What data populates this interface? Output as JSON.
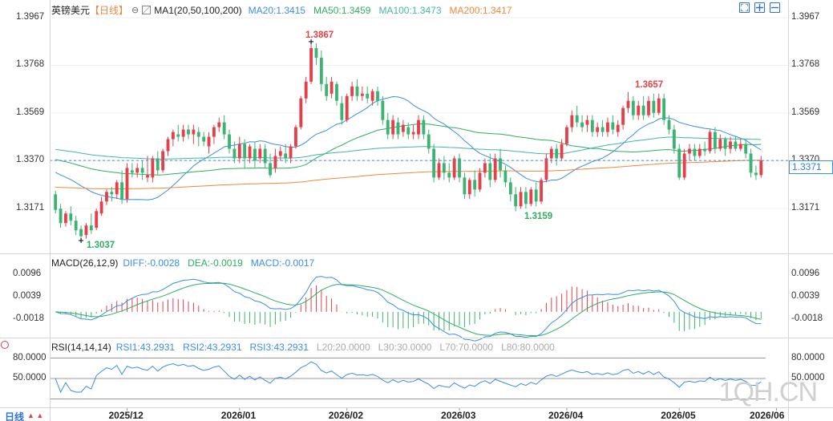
{
  "header": {
    "symbol": "英镑美元",
    "period": "【日线】",
    "gear_symbol": "⊖",
    "ma_label": "MA1(20,50,100,200)",
    "ma20": "MA20:1.3415",
    "ma50": "MA50:1.3459",
    "ma100": "MA100:1.3473",
    "ma200": "MA200:1.3417"
  },
  "price_axis": {
    "ticks": [
      "1.3967",
      "1.3768",
      "1.3569",
      "1.3370",
      "1.3171"
    ],
    "current_price": "1.3371"
  },
  "annotations": {
    "high": "1.3867",
    "high2": "1.3657",
    "low": "1.3037",
    "low2": "1.3159"
  },
  "macd": {
    "label": "MACD(26,12,9)",
    "diff": "DIFF:-0.0028",
    "dea": "DEA:-0.0019",
    "macd": "MACD:-0.0017",
    "ticks": [
      "0.0096",
      "0.0039",
      "-0.0018"
    ]
  },
  "rsi": {
    "label": "RSI(14,14,14)",
    "rsi1": "RSI1:43.2931",
    "rsi2": "RSI2:43.2931",
    "rsi3": "RSI3:43.2931",
    "l20": "L20:20.0000",
    "l30": "L30:30.0000",
    "l70": "L70:70.0000",
    "l80": "L80:80.0000",
    "ticks": [
      "80.0000",
      "50.0000"
    ]
  },
  "x_axis": {
    "period_label": "日线",
    "months": [
      "2025/12",
      "2026/01",
      "2026/02",
      "2026/03",
      "2026/04",
      "2026/05",
      "2026/06"
    ]
  },
  "watermark": "1QH.CN",
  "colors": {
    "up": "#e5404a",
    "down": "#3cb371",
    "ma20": "#3a8ee6",
    "ma50": "#2fae60",
    "ma100": "#43b6a6",
    "ma200": "#f0883e",
    "accent": "#2f6fd6",
    "high_label": "#e5404a",
    "low_label": "#2fae60"
  },
  "chart_data": {
    "type": "candlestick",
    "title": "英镑美元 【日线】",
    "ylim": [
      1.3037,
      1.3967
    ],
    "candles": [
      {
        "o": 1.323,
        "h": 1.3245,
        "c": 1.3165,
        "l": 1.315
      },
      {
        "o": 1.317,
        "h": 1.319,
        "c": 1.311,
        "l": 1.309
      },
      {
        "o": 1.311,
        "h": 1.316,
        "c": 1.315,
        "l": 1.3095
      },
      {
        "o": 1.315,
        "h": 1.318,
        "c": 1.312,
        "l": 1.31
      },
      {
        "o": 1.312,
        "h": 1.314,
        "c": 1.308,
        "l": 1.306
      },
      {
        "o": 1.3085,
        "h": 1.31,
        "c": 1.3055,
        "l": 1.3037
      },
      {
        "o": 1.306,
        "h": 1.311,
        "c": 1.31,
        "l": 1.3045
      },
      {
        "o": 1.31,
        "h": 1.315,
        "c": 1.308,
        "l": 1.3065
      },
      {
        "o": 1.309,
        "h": 1.317,
        "c": 1.316,
        "l": 1.308
      },
      {
        "o": 1.315,
        "h": 1.322,
        "c": 1.32,
        "l": 1.314
      },
      {
        "o": 1.32,
        "h": 1.325,
        "c": 1.324,
        "l": 1.3185
      },
      {
        "o": 1.324,
        "h": 1.326,
        "c": 1.323,
        "l": 1.32
      },
      {
        "o": 1.323,
        "h": 1.329,
        "c": 1.328,
        "l": 1.321
      },
      {
        "o": 1.328,
        "h": 1.333,
        "c": 1.321,
        "l": 1.319
      },
      {
        "o": 1.321,
        "h": 1.336,
        "c": 1.334,
        "l": 1.3195
      },
      {
        "o": 1.333,
        "h": 1.336,
        "c": 1.332,
        "l": 1.33
      },
      {
        "o": 1.332,
        "h": 1.336,
        "c": 1.334,
        "l": 1.33
      },
      {
        "o": 1.334,
        "h": 1.337,
        "c": 1.332,
        "l": 1.329
      },
      {
        "o": 1.33,
        "h": 1.339,
        "c": 1.331,
        "l": 1.328
      },
      {
        "o": 1.33,
        "h": 1.339,
        "c": 1.338,
        "l": 1.328
      },
      {
        "o": 1.338,
        "h": 1.341,
        "c": 1.333,
        "l": 1.331
      },
      {
        "o": 1.333,
        "h": 1.342,
        "c": 1.341,
        "l": 1.332
      },
      {
        "o": 1.341,
        "h": 1.347,
        "c": 1.346,
        "l": 1.339
      },
      {
        "o": 1.346,
        "h": 1.35,
        "c": 1.349,
        "l": 1.343
      },
      {
        "o": 1.348,
        "h": 1.352,
        "c": 1.347,
        "l": 1.345
      },
      {
        "o": 1.347,
        "h": 1.352,
        "c": 1.35,
        "l": 1.345
      },
      {
        "o": 1.35,
        "h": 1.352,
        "c": 1.348,
        "l": 1.346
      },
      {
        "o": 1.348,
        "h": 1.352,
        "c": 1.35,
        "l": 1.344
      },
      {
        "o": 1.349,
        "h": 1.351,
        "c": 1.347,
        "l": 1.343
      },
      {
        "o": 1.347,
        "h": 1.349,
        "c": 1.345,
        "l": 1.343
      },
      {
        "o": 1.343,
        "h": 1.349,
        "c": 1.347,
        "l": 1.34
      },
      {
        "o": 1.347,
        "h": 1.352,
        "c": 1.351,
        "l": 1.344
      },
      {
        "o": 1.351,
        "h": 1.355,
        "c": 1.353,
        "l": 1.349
      },
      {
        "o": 1.353,
        "h": 1.356,
        "c": 1.348,
        "l": 1.346
      },
      {
        "o": 1.348,
        "h": 1.35,
        "c": 1.342,
        "l": 1.34
      },
      {
        "o": 1.342,
        "h": 1.345,
        "c": 1.338,
        "l": 1.336
      },
      {
        "o": 1.338,
        "h": 1.347,
        "c": 1.344,
        "l": 1.336
      },
      {
        "o": 1.344,
        "h": 1.346,
        "c": 1.338,
        "l": 1.334
      },
      {
        "o": 1.338,
        "h": 1.344,
        "c": 1.343,
        "l": 1.336
      },
      {
        "o": 1.342,
        "h": 1.345,
        "c": 1.337,
        "l": 1.334
      },
      {
        "o": 1.338,
        "h": 1.344,
        "c": 1.342,
        "l": 1.336
      },
      {
        "o": 1.342,
        "h": 1.344,
        "c": 1.336,
        "l": 1.334
      },
      {
        "o": 1.336,
        "h": 1.34,
        "c": 1.331,
        "l": 1.33
      },
      {
        "o": 1.334,
        "h": 1.342,
        "c": 1.339,
        "l": 1.332
      },
      {
        "o": 1.339,
        "h": 1.343,
        "c": 1.341,
        "l": 1.337
      },
      {
        "o": 1.34,
        "h": 1.344,
        "c": 1.338,
        "l": 1.336
      },
      {
        "o": 1.338,
        "h": 1.344,
        "c": 1.343,
        "l": 1.336
      },
      {
        "o": 1.343,
        "h": 1.352,
        "c": 1.351,
        "l": 1.342
      },
      {
        "o": 1.351,
        "h": 1.364,
        "c": 1.363,
        "l": 1.35
      },
      {
        "o": 1.363,
        "h": 1.372,
        "c": 1.37,
        "l": 1.361
      },
      {
        "o": 1.37,
        "h": 1.3867,
        "c": 1.384,
        "l": 1.369
      },
      {
        "o": 1.384,
        "h": 1.386,
        "c": 1.38,
        "l": 1.377
      },
      {
        "o": 1.38,
        "h": 1.383,
        "c": 1.369,
        "l": 1.366
      },
      {
        "o": 1.369,
        "h": 1.372,
        "c": 1.364,
        "l": 1.362
      },
      {
        "o": 1.365,
        "h": 1.372,
        "c": 1.37,
        "l": 1.363
      },
      {
        "o": 1.369,
        "h": 1.37,
        "c": 1.362,
        "l": 1.36
      },
      {
        "o": 1.361,
        "h": 1.364,
        "c": 1.354,
        "l": 1.352
      },
      {
        "o": 1.354,
        "h": 1.365,
        "c": 1.364,
        "l": 1.353
      },
      {
        "o": 1.364,
        "h": 1.37,
        "c": 1.368,
        "l": 1.362
      },
      {
        "o": 1.368,
        "h": 1.371,
        "c": 1.364,
        "l": 1.362
      },
      {
        "o": 1.364,
        "h": 1.368,
        "c": 1.365,
        "l": 1.362
      },
      {
        "o": 1.365,
        "h": 1.368,
        "c": 1.363,
        "l": 1.361
      },
      {
        "o": 1.362,
        "h": 1.367,
        "c": 1.366,
        "l": 1.36
      },
      {
        "o": 1.366,
        "h": 1.368,
        "c": 1.362,
        "l": 1.36
      },
      {
        "o": 1.362,
        "h": 1.364,
        "c": 1.354,
        "l": 1.352
      },
      {
        "o": 1.354,
        "h": 1.357,
        "c": 1.348,
        "l": 1.346
      },
      {
        "o": 1.348,
        "h": 1.356,
        "c": 1.354,
        "l": 1.346
      },
      {
        "o": 1.353,
        "h": 1.355,
        "c": 1.348,
        "l": 1.346
      },
      {
        "o": 1.349,
        "h": 1.354,
        "c": 1.352,
        "l": 1.347
      },
      {
        "o": 1.351,
        "h": 1.353,
        "c": 1.348,
        "l": 1.346
      },
      {
        "o": 1.348,
        "h": 1.352,
        "c": 1.349,
        "l": 1.346
      },
      {
        "o": 1.348,
        "h": 1.356,
        "c": 1.354,
        "l": 1.346
      },
      {
        "o": 1.354,
        "h": 1.356,
        "c": 1.348,
        "l": 1.346
      },
      {
        "o": 1.348,
        "h": 1.35,
        "c": 1.342,
        "l": 1.34
      },
      {
        "o": 1.342,
        "h": 1.344,
        "c": 1.33,
        "l": 1.328
      },
      {
        "o": 1.33,
        "h": 1.338,
        "c": 1.336,
        "l": 1.329
      },
      {
        "o": 1.336,
        "h": 1.339,
        "c": 1.332,
        "l": 1.329
      },
      {
        "o": 1.332,
        "h": 1.336,
        "c": 1.33,
        "l": 1.328
      },
      {
        "o": 1.33,
        "h": 1.339,
        "c": 1.338,
        "l": 1.329
      },
      {
        "o": 1.338,
        "h": 1.34,
        "c": 1.33,
        "l": 1.328
      },
      {
        "o": 1.33,
        "h": 1.332,
        "c": 1.323,
        "l": 1.321
      },
      {
        "o": 1.323,
        "h": 1.33,
        "c": 1.329,
        "l": 1.321
      },
      {
        "o": 1.329,
        "h": 1.333,
        "c": 1.325,
        "l": 1.322
      },
      {
        "o": 1.325,
        "h": 1.334,
        "c": 1.332,
        "l": 1.324
      },
      {
        "o": 1.332,
        "h": 1.338,
        "c": 1.336,
        "l": 1.33
      },
      {
        "o": 1.336,
        "h": 1.34,
        "c": 1.329,
        "l": 1.326
      },
      {
        "o": 1.329,
        "h": 1.34,
        "c": 1.338,
        "l": 1.328
      },
      {
        "o": 1.338,
        "h": 1.342,
        "c": 1.333,
        "l": 1.33
      },
      {
        "o": 1.333,
        "h": 1.335,
        "c": 1.328,
        "l": 1.326
      },
      {
        "o": 1.328,
        "h": 1.33,
        "c": 1.323,
        "l": 1.32
      },
      {
        "o": 1.323,
        "h": 1.326,
        "c": 1.318,
        "l": 1.3159
      },
      {
        "o": 1.318,
        "h": 1.326,
        "c": 1.324,
        "l": 1.317
      },
      {
        "o": 1.324,
        "h": 1.326,
        "c": 1.319,
        "l": 1.317
      },
      {
        "o": 1.319,
        "h": 1.326,
        "c": 1.325,
        "l": 1.318
      },
      {
        "o": 1.325,
        "h": 1.328,
        "c": 1.32,
        "l": 1.318
      },
      {
        "o": 1.32,
        "h": 1.33,
        "c": 1.329,
        "l": 1.319
      },
      {
        "o": 1.329,
        "h": 1.34,
        "c": 1.338,
        "l": 1.328
      },
      {
        "o": 1.338,
        "h": 1.343,
        "c": 1.342,
        "l": 1.336
      },
      {
        "o": 1.342,
        "h": 1.344,
        "c": 1.338,
        "l": 1.335
      },
      {
        "o": 1.338,
        "h": 1.346,
        "c": 1.344,
        "l": 1.337
      },
      {
        "o": 1.344,
        "h": 1.352,
        "c": 1.351,
        "l": 1.343
      },
      {
        "o": 1.351,
        "h": 1.358,
        "c": 1.356,
        "l": 1.349
      },
      {
        "o": 1.356,
        "h": 1.36,
        "c": 1.353,
        "l": 1.351
      },
      {
        "o": 1.353,
        "h": 1.356,
        "c": 1.351,
        "l": 1.349
      },
      {
        "o": 1.352,
        "h": 1.356,
        "c": 1.354,
        "l": 1.349
      },
      {
        "o": 1.354,
        "h": 1.356,
        "c": 1.349,
        "l": 1.347
      },
      {
        "o": 1.349,
        "h": 1.353,
        "c": 1.351,
        "l": 1.347
      },
      {
        "o": 1.351,
        "h": 1.354,
        "c": 1.349,
        "l": 1.347
      },
      {
        "o": 1.349,
        "h": 1.355,
        "c": 1.353,
        "l": 1.347
      },
      {
        "o": 1.353,
        "h": 1.356,
        "c": 1.35,
        "l": 1.348
      },
      {
        "o": 1.349,
        "h": 1.354,
        "c": 1.352,
        "l": 1.347
      },
      {
        "o": 1.352,
        "h": 1.36,
        "c": 1.359,
        "l": 1.35
      },
      {
        "o": 1.359,
        "h": 1.3657,
        "c": 1.362,
        "l": 1.357
      },
      {
        "o": 1.362,
        "h": 1.364,
        "c": 1.356,
        "l": 1.354
      },
      {
        "o": 1.356,
        "h": 1.362,
        "c": 1.36,
        "l": 1.354
      },
      {
        "o": 1.36,
        "h": 1.364,
        "c": 1.356,
        "l": 1.354
      },
      {
        "o": 1.356,
        "h": 1.364,
        "c": 1.362,
        "l": 1.355
      },
      {
        "o": 1.362,
        "h": 1.365,
        "c": 1.357,
        "l": 1.355
      },
      {
        "o": 1.357,
        "h": 1.365,
        "c": 1.363,
        "l": 1.356
      },
      {
        "o": 1.363,
        "h": 1.365,
        "c": 1.354,
        "l": 1.352
      },
      {
        "o": 1.354,
        "h": 1.356,
        "c": 1.35,
        "l": 1.348
      },
      {
        "o": 1.35,
        "h": 1.352,
        "c": 1.342,
        "l": 1.34
      },
      {
        "o": 1.342,
        "h": 1.344,
        "c": 1.33,
        "l": 1.329
      },
      {
        "o": 1.33,
        "h": 1.342,
        "c": 1.34,
        "l": 1.329
      },
      {
        "o": 1.34,
        "h": 1.344,
        "c": 1.342,
        "l": 1.337
      },
      {
        "o": 1.342,
        "h": 1.344,
        "c": 1.339,
        "l": 1.337
      },
      {
        "o": 1.339,
        "h": 1.344,
        "c": 1.342,
        "l": 1.338
      },
      {
        "o": 1.342,
        "h": 1.345,
        "c": 1.341,
        "l": 1.339
      },
      {
        "o": 1.341,
        "h": 1.35,
        "c": 1.349,
        "l": 1.34
      },
      {
        "o": 1.349,
        "h": 1.351,
        "c": 1.342,
        "l": 1.34
      },
      {
        "o": 1.342,
        "h": 1.348,
        "c": 1.346,
        "l": 1.341
      },
      {
        "o": 1.346,
        "h": 1.347,
        "c": 1.342,
        "l": 1.339
      },
      {
        "o": 1.342,
        "h": 1.347,
        "c": 1.345,
        "l": 1.34
      },
      {
        "o": 1.345,
        "h": 1.347,
        "c": 1.342,
        "l": 1.341
      },
      {
        "o": 1.342,
        "h": 1.346,
        "c": 1.344,
        "l": 1.341
      },
      {
        "o": 1.344,
        "h": 1.346,
        "c": 1.34,
        "l": 1.338
      },
      {
        "o": 1.34,
        "h": 1.342,
        "c": 1.332,
        "l": 1.33
      },
      {
        "o": 1.332,
        "h": 1.335,
        "c": 1.331,
        "l": 1.329
      },
      {
        "o": 1.331,
        "h": 1.339,
        "c": 1.3371,
        "l": 1.33
      }
    ],
    "price_ticks": [
      1.3967,
      1.3768,
      1.3569,
      1.337,
      1.3171
    ],
    "current_price": 1.3371,
    "ma_legend": [
      "MA20:1.3415",
      "MA50:1.3459",
      "MA100:1.3473",
      "MA200:1.3417"
    ],
    "macd": {
      "diff": -0.0028,
      "dea": -0.0019,
      "macd": -0.0017,
      "ylim": [
        -0.006,
        0.0115
      ]
    },
    "rsi": {
      "rsi1": 43.2931,
      "ylim": [
        10,
        90
      ]
    },
    "x_labels": [
      "2025/12",
      "2026/01",
      "2026/02",
      "2026/03",
      "2026/04",
      "2026/05",
      "2026/06"
    ]
  }
}
